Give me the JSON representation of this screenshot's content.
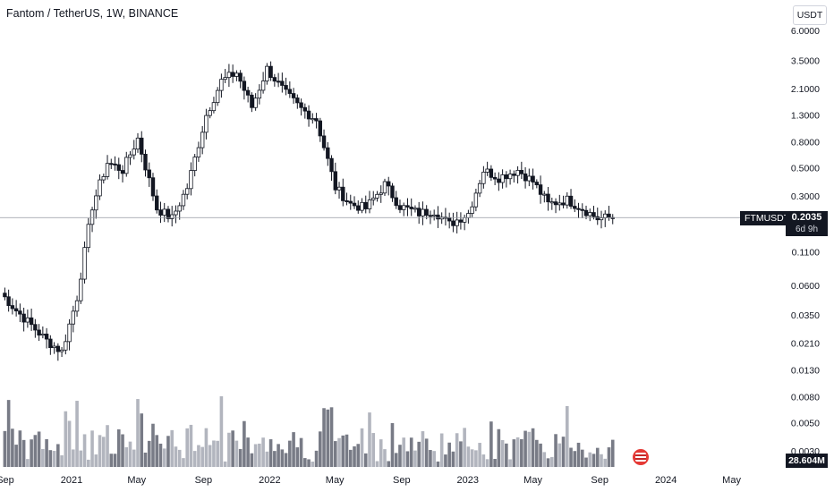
{
  "header": {
    "title": "Fantom / TetherUS, 1W, BINANCE",
    "currency_button": "USDT"
  },
  "labels": {
    "symbol": "FTMUSDT",
    "last_price": "0.2035",
    "countdown": "6d 9h",
    "volume": "28.604M"
  },
  "chart_data": {
    "type": "candlestick",
    "scale": "log",
    "grid": false,
    "y_ticks": [
      "6.0000",
      "3.5000",
      "2.1000",
      "1.3000",
      "0.8000",
      "0.5000",
      "0.3000",
      "0.1100",
      "0.0600",
      "0.0350",
      "0.0210",
      "0.0130",
      "0.0080",
      "0.0050",
      "0.0030"
    ],
    "y_tick_values": [
      6.0,
      3.5,
      2.1,
      1.3,
      0.8,
      0.5,
      0.3,
      0.11,
      0.06,
      0.035,
      0.021,
      0.013,
      0.008,
      0.005,
      0.003
    ],
    "x_ticks": [
      "Sep",
      "2021",
      "May",
      "Sep",
      "2022",
      "May",
      "Sep",
      "2023",
      "May",
      "Sep",
      "2024",
      "May"
    ],
    "x_tick_dates": [
      "2020-09-01",
      "2021-01-01",
      "2021-05-01",
      "2021-09-01",
      "2022-01-01",
      "2022-05-01",
      "2022-09-01",
      "2023-01-01",
      "2023-05-01",
      "2023-09-01",
      "2024-01-01",
      "2024-05-01"
    ],
    "last_price": 0.2035,
    "series": [
      {
        "week": "2020-08-24",
        "close": 0.052
      },
      {
        "week": "2020-09-21",
        "close": 0.038
      },
      {
        "week": "2020-10-19",
        "close": 0.029
      },
      {
        "week": "2020-11-16",
        "close": 0.022
      },
      {
        "week": "2020-12-14",
        "close": 0.018
      },
      {
        "week": "2021-01-11",
        "close": 0.048
      },
      {
        "week": "2021-02-08",
        "close": 0.25
      },
      {
        "week": "2021-03-08",
        "close": 0.55
      },
      {
        "week": "2021-04-05",
        "close": 0.48
      },
      {
        "week": "2021-05-03",
        "close": 0.85
      },
      {
        "week": "2021-06-07",
        "close": 0.24
      },
      {
        "week": "2021-07-05",
        "close": 0.2
      },
      {
        "week": "2021-08-02",
        "close": 0.35
      },
      {
        "week": "2021-09-06",
        "close": 1.3
      },
      {
        "week": "2021-10-04",
        "close": 2.4
      },
      {
        "week": "2021-11-01",
        "close": 2.8
      },
      {
        "week": "2021-11-29",
        "close": 1.5
      },
      {
        "week": "2021-12-27",
        "close": 3.0
      },
      {
        "week": "2022-01-31",
        "close": 1.9
      },
      {
        "week": "2022-02-28",
        "close": 1.45
      },
      {
        "week": "2022-03-28",
        "close": 1.2
      },
      {
        "week": "2022-05-02",
        "close": 0.35
      },
      {
        "week": "2022-05-30",
        "close": 0.26
      },
      {
        "week": "2022-06-27",
        "close": 0.24
      },
      {
        "week": "2022-08-01",
        "close": 0.37
      },
      {
        "week": "2022-08-29",
        "close": 0.25
      },
      {
        "week": "2022-10-03",
        "close": 0.22
      },
      {
        "week": "2022-10-31",
        "close": 0.23
      },
      {
        "week": "2022-11-28",
        "close": 0.18
      },
      {
        "week": "2023-01-02",
        "close": 0.22
      },
      {
        "week": "2023-01-30",
        "close": 0.48
      },
      {
        "week": "2023-02-27",
        "close": 0.42
      },
      {
        "week": "2023-04-03",
        "close": 0.48
      },
      {
        "week": "2023-05-01",
        "close": 0.39
      },
      {
        "week": "2023-05-29",
        "close": 0.26
      },
      {
        "week": "2023-07-03",
        "close": 0.28
      },
      {
        "week": "2023-07-31",
        "close": 0.24
      },
      {
        "week": "2023-08-28",
        "close": 0.2
      },
      {
        "week": "2023-09-25",
        "close": 0.2035
      }
    ]
  }
}
